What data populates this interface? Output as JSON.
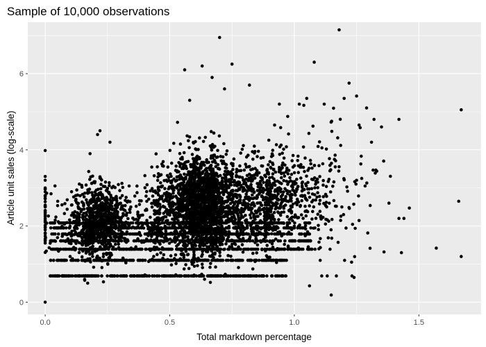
{
  "chart_data": {
    "type": "scatter",
    "title": "Sample of 10,000 observations",
    "xlabel": "Total markdown percentage",
    "ylabel": "Article unit sales (log-scale)",
    "xlim": [
      -0.07,
      1.75
    ],
    "ylim": [
      -0.32,
      7.35
    ],
    "x_ticks": [
      0,
      0.5,
      1.0,
      1.5
    ],
    "x_tick_labels": [
      "0.0",
      "0.5",
      "1.0",
      "1.5"
    ],
    "y_ticks": [
      0,
      2,
      4,
      6
    ],
    "y_tick_labels": [
      "0",
      "2",
      "4",
      "6"
    ],
    "grid": true,
    "legend": "none",
    "background": "#ebebeb",
    "point_color": "#000000",
    "sample_size": 10000,
    "discrete_levels_y": [
      0.69,
      1.1,
      1.39,
      1.61,
      1.79,
      1.95,
      2.08
    ],
    "x_spike_values": [
      0.0,
      0.25,
      0.45,
      0.6,
      0.67,
      0.9
    ],
    "clusters": [
      {
        "x_center": 0.21,
        "x_spread": 0.05,
        "y_center": 2.1,
        "y_spread": 0.45,
        "count": 700
      },
      {
        "x_center": 0.62,
        "x_spread": 0.07,
        "y_center": 2.55,
        "y_spread": 0.65,
        "count": 1700
      },
      {
        "x_center": 0.85,
        "x_spread": 0.13,
        "y_center": 2.75,
        "y_spread": 0.6,
        "count": 750
      },
      {
        "x_center": 0.45,
        "x_spread": 0.25,
        "y_center": 2.2,
        "y_spread": 0.5,
        "count": 600
      },
      {
        "x_center": 1.05,
        "x_spread": 0.16,
        "y_center": 3.0,
        "y_spread": 0.9,
        "count": 180
      }
    ],
    "outliers": [
      {
        "x": 1.18,
        "y": 7.15
      },
      {
        "x": 0.7,
        "y": 6.95
      },
      {
        "x": 0.75,
        "y": 6.25
      },
      {
        "x": 0.63,
        "y": 6.2
      },
      {
        "x": 0.56,
        "y": 6.1
      },
      {
        "x": 1.08,
        "y": 6.3
      },
      {
        "x": 0.82,
        "y": 5.7
      },
      {
        "x": 1.22,
        "y": 5.75
      },
      {
        "x": 1.67,
        "y": 5.05
      },
      {
        "x": 1.57,
        "y": 1.42
      },
      {
        "x": 1.67,
        "y": 1.2
      },
      {
        "x": 1.66,
        "y": 2.65
      },
      {
        "x": 1.42,
        "y": 4.8
      },
      {
        "x": 1.42,
        "y": 2.2
      },
      {
        "x": 1.44,
        "y": 2.2
      },
      {
        "x": 1.43,
        "y": 1.3
      },
      {
        "x": 1.38,
        "y": 2.6
      },
      {
        "x": 1.35,
        "y": 4.6
      },
      {
        "x": 1.31,
        "y": 4.2
      },
      {
        "x": 1.32,
        "y": 4.8
      },
      {
        "x": 1.36,
        "y": 1.32
      },
      {
        "x": 1.24,
        "y": 0.65
      },
      {
        "x": 1.23,
        "y": 1.05
      },
      {
        "x": 1.29,
        "y": 5.1
      },
      {
        "x": 1.26,
        "y": 4.65
      },
      {
        "x": 1.25,
        "y": 3.2
      },
      {
        "x": 1.2,
        "y": 5.35
      },
      {
        "x": 1.15,
        "y": 4.75
      },
      {
        "x": 0.22,
        "y": 4.5
      },
      {
        "x": 0.21,
        "y": 4.4
      },
      {
        "x": 0.26,
        "y": 4.2
      },
      {
        "x": 0.18,
        "y": 3.9
      },
      {
        "x": 0.05,
        "y": 2.65
      },
      {
        "x": 0.1,
        "y": 1.2
      },
      {
        "x": 0.02,
        "y": 1.55
      },
      {
        "x": 0.58,
        "y": 5.3
      },
      {
        "x": 0.67,
        "y": 5.9
      },
      {
        "x": 0.72,
        "y": 5.6
      },
      {
        "x": 0.94,
        "y": 5.2
      },
      {
        "x": 1.02,
        "y": 5.2
      },
      {
        "x": 1.05,
        "y": 5.35
      },
      {
        "x": 1.12,
        "y": 5.2
      }
    ],
    "ray_at_zero": [
      {
        "x": 0.0,
        "y": 3.3
      },
      {
        "x": 0.0,
        "y": 3.2
      },
      {
        "x": 0.0,
        "y": 3.0
      },
      {
        "x": 0.0,
        "y": 2.8
      },
      {
        "x": 0.0,
        "y": 2.5
      },
      {
        "x": 0.0,
        "y": 2.4
      },
      {
        "x": 0.0,
        "y": 2.3
      },
      {
        "x": 0.0,
        "y": 2.2
      },
      {
        "x": 0.0,
        "y": 2.1
      },
      {
        "x": 0.0,
        "y": 2.0
      },
      {
        "x": 0.0,
        "y": 1.9
      },
      {
        "x": 0.0,
        "y": 1.8
      },
      {
        "x": 0.0,
        "y": 0.0
      }
    ]
  }
}
